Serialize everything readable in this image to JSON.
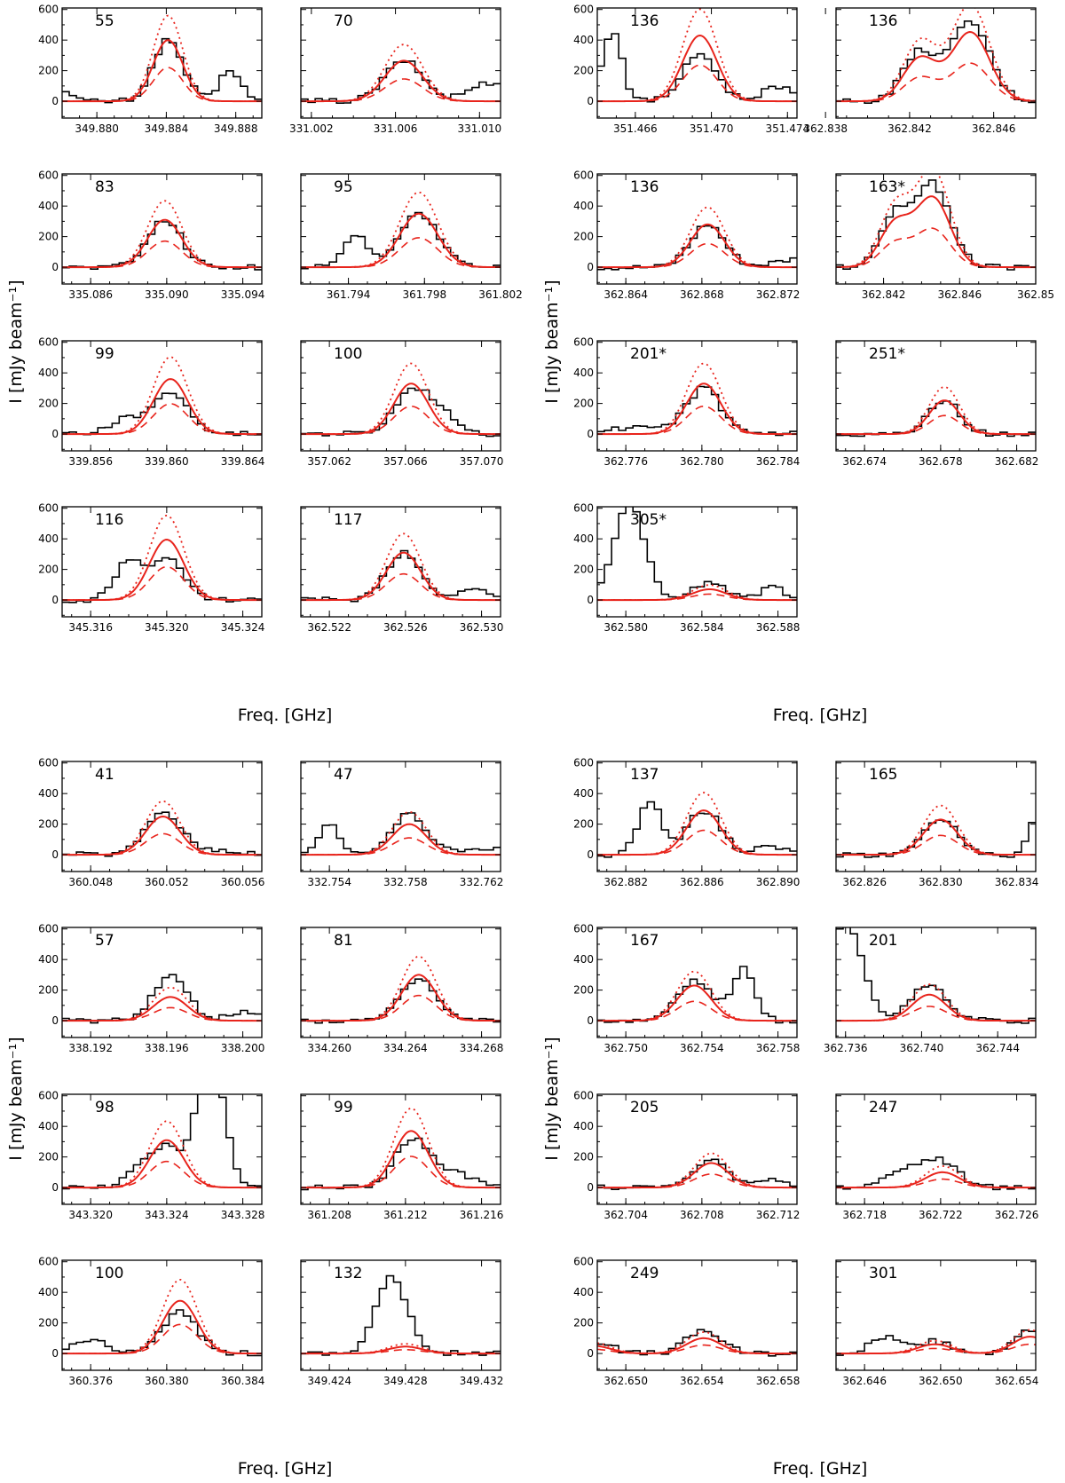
{
  "chart_data": {
    "type": "line",
    "title": "",
    "xlabel": "Freq. [GHz]",
    "ylabel": "I [mJy beam⁻¹]",
    "ylim": [
      -110,
      610
    ],
    "yticks": [
      0,
      200,
      400,
      600
    ],
    "grid": false,
    "legend": "none",
    "series_styles": {
      "observed": {
        "color": "#000000",
        "style": "histogram"
      },
      "model_total": {
        "color": "#e8241c",
        "style": "solid"
      },
      "model_alt": {
        "color": "#e8241c",
        "style": "dotted"
      },
      "model_half": {
        "color": "#e8241c",
        "style": "dashed"
      }
    },
    "panels": [
      {
        "label": "55",
        "xmin": 349.878,
        "xmax": 349.8895,
        "ticks": [
          "349.880",
          "349.884",
          "349.888"
        ],
        "lines": [
          {
            "c": 349.8841,
            "amp": 400,
            "w": 0.00085
          }
        ],
        "contam": [
          {
            "c": 349.8775,
            "amp": 130,
            "w": 0.0007
          },
          {
            "c": 349.8877,
            "amp": 210,
            "w": 0.0006
          }
        ],
        "obs_scale": 1.0
      },
      {
        "label": "70",
        "xmin": 331.0015,
        "xmax": 331.011,
        "ticks": [
          "331.002",
          "331.006",
          "331.010"
        ],
        "lines": [
          {
            "c": 331.0064,
            "amp": 265,
            "w": 0.0009
          }
        ],
        "contam": [
          {
            "c": 331.0105,
            "amp": 120,
            "w": 0.001
          }
        ],
        "obs_scale": 1.0
      },
      {
        "label": "136",
        "xmin": 351.464,
        "xmax": 351.4745,
        "ticks": [
          "351.466",
          "351.470",
          "351.474"
        ],
        "lines": [
          {
            "c": 351.4694,
            "amp": 430,
            "w": 0.0009
          }
        ],
        "contam": [
          {
            "c": 351.4648,
            "amp": 470,
            "w": 0.0005
          },
          {
            "c": 351.4735,
            "amp": 100,
            "w": 0.0008
          }
        ],
        "obs_scale": 0.72
      },
      {
        "label": "136",
        "xmin": 362.8385,
        "xmax": 362.848,
        "ticks": [
          "362.838",
          "362.842",
          "362.846"
        ],
        "lines": [
          {
            "c": 362.8425,
            "amp": 280,
            "w": 0.0008
          },
          {
            "c": 362.8449,
            "amp": 450,
            "w": 0.0009
          }
        ],
        "contam": [],
        "obs_scale": 1.15
      },
      {
        "label": "83",
        "xmin": 335.0845,
        "xmax": 335.095,
        "ticks": [
          "335.086",
          "335.090",
          "335.094"
        ],
        "lines": [
          {
            "c": 335.0899,
            "amp": 310,
            "w": 0.0009
          }
        ],
        "contam": [],
        "obs_scale": 1.0
      },
      {
        "label": "95",
        "xmin": 361.7915,
        "xmax": 361.802,
        "ticks": [
          "361.794",
          "361.798",
          "361.802"
        ],
        "lines": [
          {
            "c": 361.7977,
            "amp": 350,
            "w": 0.001
          }
        ],
        "contam": [
          {
            "c": 361.7944,
            "amp": 200,
            "w": 0.0007
          }
        ],
        "obs_scale": 1.0
      },
      {
        "label": "136",
        "xmin": 362.8625,
        "xmax": 362.873,
        "ticks": [
          "362.864",
          "362.868",
          "362.872"
        ],
        "lines": [
          {
            "c": 362.8683,
            "amp": 280,
            "w": 0.0009
          }
        ],
        "contam": [
          {
            "c": 362.8735,
            "amp": 60,
            "w": 0.0015
          }
        ],
        "obs_scale": 1.0
      },
      {
        "label": "163*",
        "xmin": 362.8395,
        "xmax": 362.85,
        "ticks": [
          "362.842",
          "362.846",
          "362.85"
        ],
        "lines": [
          {
            "c": 362.8426,
            "amp": 280,
            "w": 0.0008
          },
          {
            "c": 362.8446,
            "amp": 450,
            "w": 0.0009
          }
        ],
        "contam": [],
        "obs_scale": 1.2
      },
      {
        "label": "99",
        "xmin": 339.8545,
        "xmax": 339.865,
        "ticks": [
          "339.856",
          "339.860",
          "339.864"
        ],
        "lines": [
          {
            "c": 339.8602,
            "amp": 360,
            "w": 0.0009
          }
        ],
        "contam": [
          {
            "c": 339.8578,
            "amp": 100,
            "w": 0.0008
          }
        ],
        "obs_scale": 0.78
      },
      {
        "label": "100",
        "xmin": 357.0605,
        "xmax": 357.071,
        "ticks": [
          "357.062",
          "357.066",
          "357.070"
        ],
        "lines": [
          {
            "c": 357.0663,
            "amp": 330,
            "w": 0.0009
          }
        ],
        "contam": [
          {
            "c": 357.0679,
            "amp": 130,
            "w": 0.0009
          }
        ],
        "obs_scale": 0.82
      },
      {
        "label": "201*",
        "xmin": 362.7745,
        "xmax": 362.785,
        "ticks": [
          "362.776",
          "362.780",
          "362.784"
        ],
        "lines": [
          {
            "c": 362.7801,
            "amp": 330,
            "w": 0.0009
          }
        ],
        "contam": [
          {
            "c": 362.7765,
            "amp": 40,
            "w": 0.0015
          }
        ],
        "obs_scale": 0.9
      },
      {
        "label": "251*",
        "xmin": 362.6725,
        "xmax": 362.683,
        "ticks": [
          "362.674",
          "362.678",
          "362.682"
        ],
        "lines": [
          {
            "c": 362.6782,
            "amp": 220,
            "w": 0.0008
          }
        ],
        "contam": [],
        "obs_scale": 1.0
      },
      {
        "label": "116",
        "xmin": 345.3145,
        "xmax": 345.325,
        "ticks": [
          "345.316",
          "345.320",
          "345.324"
        ],
        "lines": [
          {
            "c": 345.32,
            "amp": 395,
            "w": 0.0009
          }
        ],
        "contam": [
          {
            "c": 345.318,
            "amp": 250,
            "w": 0.0007
          }
        ],
        "obs_scale": 0.68
      },
      {
        "label": "117",
        "xmin": 362.5205,
        "xmax": 362.531,
        "ticks": [
          "362.522",
          "362.526",
          "362.530"
        ],
        "lines": [
          {
            "c": 362.5259,
            "amp": 310,
            "w": 0.0009
          }
        ],
        "contam": [
          {
            "c": 362.5295,
            "amp": 70,
            "w": 0.0009
          }
        ],
        "obs_scale": 1.0
      },
      {
        "label": "305*",
        "xmin": 362.5785,
        "xmax": 362.589,
        "ticks": [
          "362.580",
          "362.584",
          "362.588"
        ],
        "lines": [
          {
            "c": 362.5844,
            "amp": 70,
            "w": 0.0009
          }
        ],
        "contam": [
          {
            "c": 362.5802,
            "amp": 620,
            "w": 0.0008
          },
          {
            "c": 362.5877,
            "amp": 80,
            "w": 0.0007
          }
        ],
        "obs_scale": 1.6
      },
      {
        "label": "41",
        "xmin": 360.0465,
        "xmax": 360.057,
        "ticks": [
          "360.048",
          "360.052",
          "360.056"
        ],
        "lines": [
          {
            "c": 360.0518,
            "amp": 250,
            "w": 0.0009
          }
        ],
        "contam": [
          {
            "c": 360.0545,
            "amp": 30,
            "w": 0.0015
          }
        ],
        "obs_scale": 1.1
      },
      {
        "label": "47",
        "xmin": 332.7525,
        "xmax": 332.763,
        "ticks": [
          "332.754",
          "332.758",
          "332.762"
        ],
        "lines": [
          {
            "c": 332.7582,
            "amp": 200,
            "w": 0.0009
          }
        ],
        "contam": [
          {
            "c": 332.754,
            "amp": 190,
            "w": 0.0006
          },
          {
            "c": 332.762,
            "amp": 40,
            "w": 0.0012
          }
        ],
        "obs_scale": 1.35
      },
      {
        "label": "137",
        "xmin": 362.8805,
        "xmax": 362.891,
        "ticks": [
          "362.882",
          "362.886",
          "362.890"
        ],
        "lines": [
          {
            "c": 362.8861,
            "amp": 290,
            "w": 0.0009
          }
        ],
        "contam": [
          {
            "c": 362.8833,
            "amp": 350,
            "w": 0.0006
          },
          {
            "c": 362.8895,
            "amp": 50,
            "w": 0.0008
          }
        ],
        "obs_scale": 1.0
      },
      {
        "label": "165",
        "xmin": 362.8245,
        "xmax": 362.835,
        "ticks": [
          "362.826",
          "362.830",
          "362.834"
        ],
        "lines": [
          {
            "c": 362.83,
            "amp": 230,
            "w": 0.0009
          }
        ],
        "contam": [
          {
            "c": 362.835,
            "amp": 230,
            "w": 0.0004
          }
        ],
        "obs_scale": 1.0
      },
      {
        "label": "57",
        "xmin": 338.1905,
        "xmax": 338.201,
        "ticks": [
          "338.192",
          "338.196",
          "338.200"
        ],
        "lines": [
          {
            "c": 338.1962,
            "amp": 155,
            "w": 0.0009
          }
        ],
        "contam": [
          {
            "c": 338.2002,
            "amp": 60,
            "w": 0.0008
          }
        ],
        "obs_scale": 1.85
      },
      {
        "label": "81",
        "xmin": 334.2585,
        "xmax": 334.269,
        "ticks": [
          "334.260",
          "334.264",
          "334.268"
        ],
        "lines": [
          {
            "c": 334.2647,
            "amp": 300,
            "w": 0.0009
          }
        ],
        "contam": [],
        "obs_scale": 0.9
      },
      {
        "label": "167",
        "xmin": 362.7485,
        "xmax": 362.759,
        "ticks": [
          "362.750",
          "362.754",
          "362.758"
        ],
        "lines": [
          {
            "c": 362.7536,
            "amp": 230,
            "w": 0.0009
          }
        ],
        "contam": [
          {
            "c": 362.7562,
            "amp": 340,
            "w": 0.0006
          }
        ],
        "obs_scale": 1.15
      },
      {
        "label": "201",
        "xmin": 362.7355,
        "xmax": 362.746,
        "ticks": [
          "362.736",
          "362.740",
          "362.744"
        ],
        "lines": [
          {
            "c": 362.7404,
            "amp": 170,
            "w": 0.0009
          }
        ],
        "contam": [
          {
            "c": 362.736,
            "amp": 640,
            "w": 0.0009
          }
        ],
        "obs_scale": 1.4
      },
      {
        "label": "98",
        "xmin": 343.3185,
        "xmax": 343.329,
        "ticks": [
          "343.320",
          "343.324",
          "343.328"
        ],
        "lines": [
          {
            "c": 343.324,
            "amp": 310,
            "w": 0.0009
          }
        ],
        "contam": [
          {
            "c": 343.3263,
            "amp": 900,
            "w": 0.0007
          },
          {
            "c": 343.3225,
            "amp": 90,
            "w": 0.0008
          }
        ],
        "obs_scale": 0.82
      },
      {
        "label": "99",
        "xmin": 361.2065,
        "xmax": 361.217,
        "ticks": [
          "361.208",
          "361.212",
          "361.216"
        ],
        "lines": [
          {
            "c": 361.2123,
            "amp": 370,
            "w": 0.0009
          }
        ],
        "contam": [
          {
            "c": 361.2145,
            "amp": 90,
            "w": 0.0012
          }
        ],
        "obs_scale": 0.82
      },
      {
        "label": "205",
        "xmin": 362.7025,
        "xmax": 362.713,
        "ticks": [
          "362.704",
          "362.708",
          "362.712"
        ],
        "lines": [
          {
            "c": 362.7085,
            "amp": 160,
            "w": 0.0009
          }
        ],
        "contam": [
          {
            "c": 362.7115,
            "amp": 45,
            "w": 0.0008
          }
        ],
        "obs_scale": 1.1
      },
      {
        "label": "247",
        "xmin": 362.7165,
        "xmax": 362.727,
        "ticks": [
          "362.718",
          "362.722",
          "362.726"
        ],
        "lines": [
          {
            "c": 362.7221,
            "amp": 100,
            "w": 0.0009
          }
        ],
        "contam": [
          {
            "c": 362.7203,
            "amp": 120,
            "w": 0.0011
          }
        ],
        "obs_scale": 1.5
      },
      {
        "label": "100",
        "xmin": 360.3745,
        "xmax": 360.385,
        "ticks": [
          "360.376",
          "360.380",
          "360.384"
        ],
        "lines": [
          {
            "c": 360.3807,
            "amp": 345,
            "w": 0.0009
          }
        ],
        "contam": [
          {
            "c": 360.376,
            "amp": 90,
            "w": 0.0008
          }
        ],
        "obs_scale": 0.82
      },
      {
        "label": "132",
        "xmin": 349.4225,
        "xmax": 349.433,
        "ticks": [
          "349.424",
          "349.428",
          "349.432"
        ],
        "lines": [
          {
            "c": 349.428,
            "amp": 45,
            "w": 0.0009
          }
        ],
        "contam": [
          {
            "c": 349.4272,
            "amp": 460,
            "w": 0.0008
          }
        ],
        "obs_scale": 1.2
      },
      {
        "label": "249",
        "xmin": 362.6485,
        "xmax": 362.659,
        "ticks": [
          "362.650",
          "362.654",
          "362.658"
        ],
        "lines": [
          {
            "c": 362.6541,
            "amp": 100,
            "w": 0.0009
          },
          {
            "c": 362.6483,
            "amp": 50,
            "w": 0.0009
          }
        ],
        "contam": [],
        "obs_scale": 1.5
      },
      {
        "label": "301",
        "xmin": 362.6445,
        "xmax": 362.655,
        "ticks": [
          "362.646",
          "362.650",
          "362.654"
        ],
        "lines": [
          {
            "c": 362.6497,
            "amp": 60,
            "w": 0.0009
          },
          {
            "c": 362.6547,
            "amp": 110,
            "w": 0.0009
          }
        ],
        "contam": [
          {
            "c": 362.6471,
            "amp": 110,
            "w": 0.0008
          }
        ],
        "obs_scale": 1.3
      }
    ]
  }
}
